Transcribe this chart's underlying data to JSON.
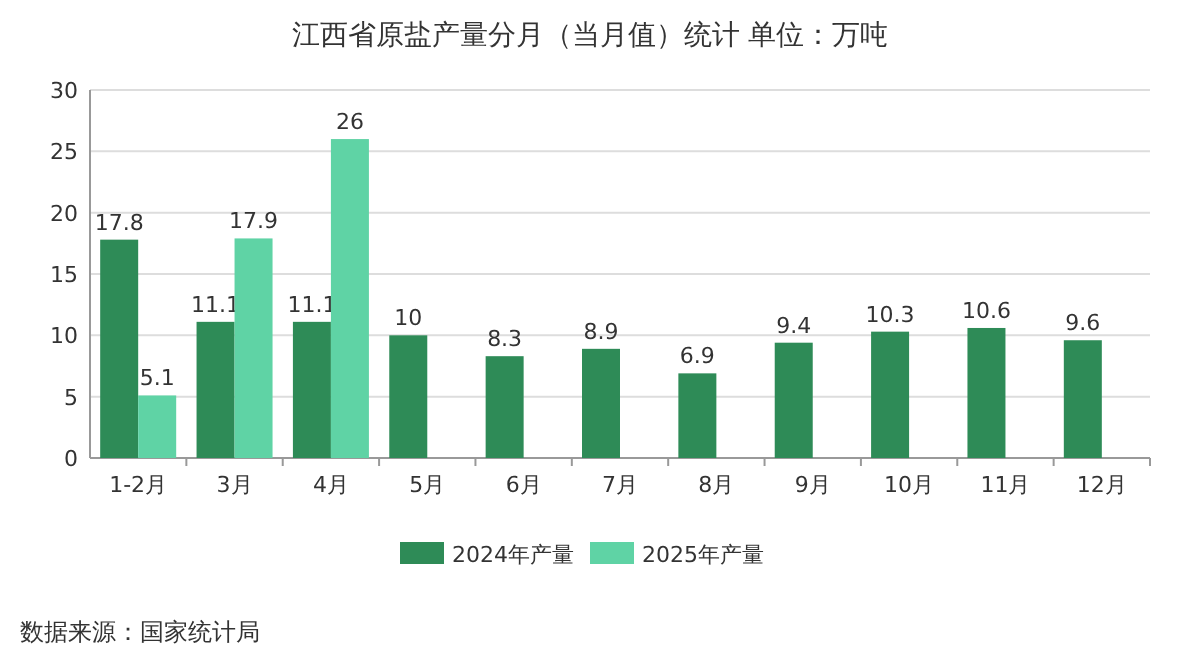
{
  "chart_data": {
    "type": "bar",
    "title": "江西省原盐产量分月（当月值）统计  单位：万吨",
    "categories": [
      "1-2月",
      "3月",
      "4月",
      "5月",
      "6月",
      "7月",
      "8月",
      "9月",
      "10月",
      "11月",
      "12月"
    ],
    "series": [
      {
        "name": "2024年产量",
        "color": "#2e8b57",
        "values": [
          17.8,
          11.1,
          11.1,
          10,
          8.3,
          8.9,
          6.9,
          9.4,
          10.3,
          10.6,
          9.6
        ]
      },
      {
        "name": "2025年产量",
        "color": "#5fd3a5",
        "values": [
          5.1,
          17.9,
          26,
          null,
          null,
          null,
          null,
          null,
          null,
          null,
          null
        ]
      }
    ],
    "ylim": [
      0,
      30
    ],
    "yticks": [
      0,
      5,
      10,
      15,
      20,
      25,
      30
    ],
    "grid": "y",
    "legend": "bottom",
    "data_labels": true,
    "annotations": [
      "数据来源：国家统计局"
    ]
  }
}
